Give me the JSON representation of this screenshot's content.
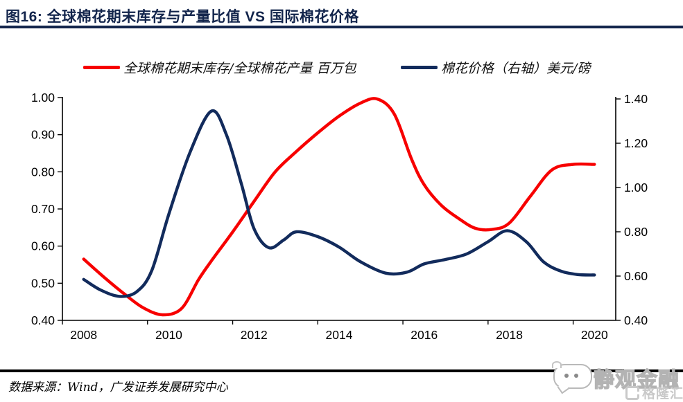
{
  "header": {
    "title": "图16:  全球棉花期末库存与产量比值 VS 国际棉花价格"
  },
  "legend": [
    {
      "label": "全球棉花期末库存/全球棉花产量 百万包",
      "color": "#f70000"
    },
    {
      "label": "棉花价格（右轴）美元/磅",
      "color": "#122b5c"
    }
  ],
  "footer": {
    "source": "数据来源：Wind，广发证券发展研究中心",
    "watermark": "静观金融",
    "logo_text": "格隆汇"
  },
  "chart_data": {
    "type": "line",
    "title": "全球棉花期末库存与产量比值 VS 国际棉花价格",
    "x_range": [
      2008,
      2020
    ],
    "x_tick_labels": [
      "2008",
      "2010",
      "2012",
      "2014",
      "2016",
      "2018",
      "2020"
    ],
    "left_axis": {
      "range": [
        0.4,
        1.0
      ],
      "tick_labels": [
        "0.40",
        "0.50",
        "0.60",
        "0.70",
        "0.80",
        "0.90",
        "1.00"
      ]
    },
    "right_axis": {
      "range": [
        0.4,
        1.4
      ],
      "tick_labels": [
        "0.40",
        "0.60",
        "0.80",
        "1.00",
        "1.20",
        "1.40"
      ]
    },
    "grid": false,
    "legend_position": "top",
    "years": [
      2008,
      2009,
      2010,
      2011,
      2012,
      2013,
      2014,
      2015,
      2016,
      2017,
      2018,
      2019,
      2020
    ],
    "series": [
      {
        "name": "全球棉花期末库存/全球棉花产量 百万包",
        "axis": "left",
        "color": "#f70000",
        "annual_values": [
          0.565,
          0.467,
          0.418,
          0.56,
          0.72,
          0.855,
          0.95,
          0.995,
          0.765,
          0.655,
          0.662,
          0.805,
          0.82
        ],
        "curve_points": [
          [
            2008,
            0.565
          ],
          [
            2008.5,
            0.514
          ],
          [
            2009,
            0.467
          ],
          [
            2009.4,
            0.434
          ],
          [
            2009.85,
            0.415
          ],
          [
            2010.3,
            0.432
          ],
          [
            2010.7,
            0.51
          ],
          [
            2011,
            0.56
          ],
          [
            2011.5,
            0.638
          ],
          [
            2012,
            0.72
          ],
          [
            2012.5,
            0.8
          ],
          [
            2013,
            0.855
          ],
          [
            2013.5,
            0.905
          ],
          [
            2014,
            0.95
          ],
          [
            2014.5,
            0.985
          ],
          [
            2014.9,
            0.996
          ],
          [
            2015.3,
            0.955
          ],
          [
            2015.7,
            0.835
          ],
          [
            2016,
            0.765
          ],
          [
            2016.4,
            0.71
          ],
          [
            2016.8,
            0.675
          ],
          [
            2017.2,
            0.648
          ],
          [
            2017.6,
            0.645
          ],
          [
            2018,
            0.662
          ],
          [
            2018.5,
            0.735
          ],
          [
            2019,
            0.805
          ],
          [
            2019.5,
            0.82
          ],
          [
            2020,
            0.82
          ]
        ]
      },
      {
        "name": "棉花价格（右轴）美元/磅",
        "axis": "right",
        "color": "#122b5c",
        "annual_values": [
          0.585,
          0.51,
          0.88,
          1.345,
          0.815,
          0.8,
          0.73,
          0.615,
          0.655,
          0.7,
          0.805,
          0.63,
          0.605
        ],
        "curve_points": [
          [
            2008,
            0.585
          ],
          [
            2008.4,
            0.537
          ],
          [
            2008.85,
            0.508
          ],
          [
            2009.25,
            0.53
          ],
          [
            2009.6,
            0.625
          ],
          [
            2010,
            0.88
          ],
          [
            2010.5,
            1.16
          ],
          [
            2011,
            1.345
          ],
          [
            2011.35,
            1.24
          ],
          [
            2011.7,
            1.02
          ],
          [
            2012,
            0.815
          ],
          [
            2012.35,
            0.728
          ],
          [
            2012.7,
            0.763
          ],
          [
            2013,
            0.8
          ],
          [
            2013.5,
            0.778
          ],
          [
            2014,
            0.731
          ],
          [
            2014.5,
            0.665
          ],
          [
            2015.1,
            0.613
          ],
          [
            2015.6,
            0.618
          ],
          [
            2016,
            0.655
          ],
          [
            2016.5,
            0.675
          ],
          [
            2017,
            0.7
          ],
          [
            2017.5,
            0.755
          ],
          [
            2017.95,
            0.805
          ],
          [
            2018.4,
            0.755
          ],
          [
            2018.8,
            0.665
          ],
          [
            2019.2,
            0.623
          ],
          [
            2019.6,
            0.607
          ],
          [
            2020,
            0.605
          ]
        ]
      }
    ]
  }
}
